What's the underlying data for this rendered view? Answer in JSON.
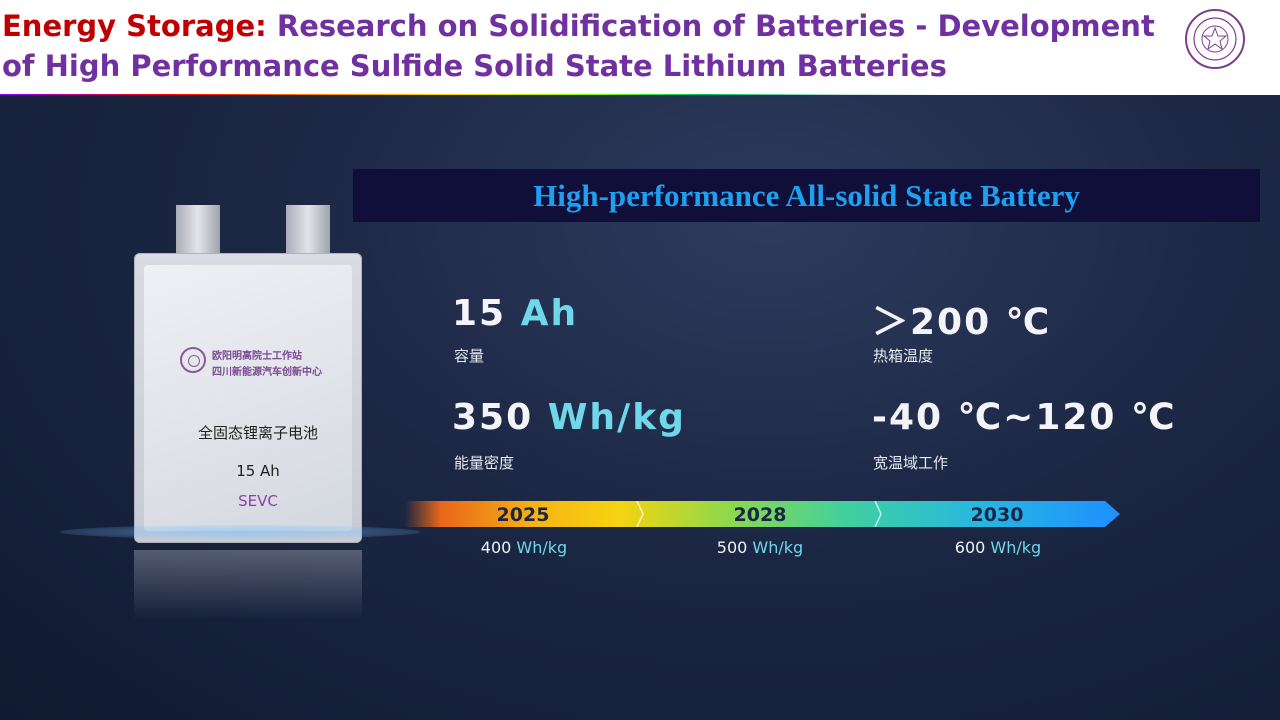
{
  "header": {
    "title_prefix": "Energy Storage:",
    "title_rest": " Research on Solidification of Batteries - Development",
    "title_line2": "of High Performance Sulfide Solid State Lithium Batteries",
    "logo_icon": "university-seal-icon"
  },
  "battery": {
    "org_line1": "欧阳明高院士工作站",
    "org_line2": "四川新能源汽车创新中心",
    "name": "全固态锂离子电池",
    "capacity": "15 Ah",
    "brand": "SEVC"
  },
  "banner": {
    "text": "High-performance All-solid State Battery"
  },
  "stats": [
    {
      "value_num": "15",
      "value_unit": "Ah",
      "label": "容量"
    },
    {
      "value_num": "＞200 ℃",
      "value_unit": "",
      "label": "热箱温度"
    },
    {
      "value_num": "350",
      "value_unit": "Wh/kg",
      "label": "能量密度"
    },
    {
      "value_num": "-40 ℃~120 ℃",
      "value_unit": "",
      "label": "宽温域工作"
    }
  ],
  "timeline": [
    {
      "year": "2025",
      "target_num": "400",
      "target_unit": "Wh/kg"
    },
    {
      "year": "2028",
      "target_num": "500",
      "target_unit": "Wh/kg"
    },
    {
      "year": "2030",
      "target_num": "600",
      "target_unit": "Wh/kg"
    }
  ],
  "colors": {
    "title_prefix": "#c00000",
    "title": "#7030a0",
    "banner_bg": "#0f0f3a",
    "banner_text": "#1ea0f0",
    "accent": "#6fd7e8"
  }
}
